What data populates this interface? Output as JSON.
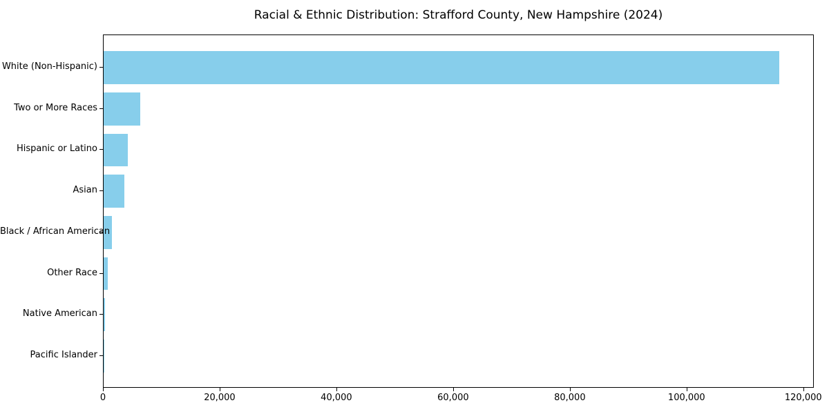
{
  "figure": {
    "background": "#ffffff",
    "text_color": "#000000",
    "spine_color": "#000000"
  },
  "chart_data": {
    "type": "bar",
    "orientation": "horizontal",
    "title": "Racial & Ethnic Distribution: Strafford County, New Hampshire (2024)",
    "categories": [
      "White (Non-Hispanic)",
      "Two or More Races",
      "Hispanic or Latino",
      "Asian",
      "Black / African American",
      "Other Race",
      "Native American",
      "Pacific Islander"
    ],
    "values": [
      116000,
      6300,
      4100,
      3500,
      1400,
      700,
      200,
      50
    ],
    "bar_color": "#87CEEB",
    "xlabel": "",
    "ylabel": "",
    "xlim": [
      0,
      121800
    ],
    "x_ticks": [
      0,
      20000,
      40000,
      60000,
      80000,
      100000,
      120000
    ],
    "x_tick_labels": [
      "0",
      "20,000",
      "40,000",
      "60,000",
      "80,000",
      "100,000",
      "120,000"
    ],
    "grid": false,
    "legend": null
  }
}
